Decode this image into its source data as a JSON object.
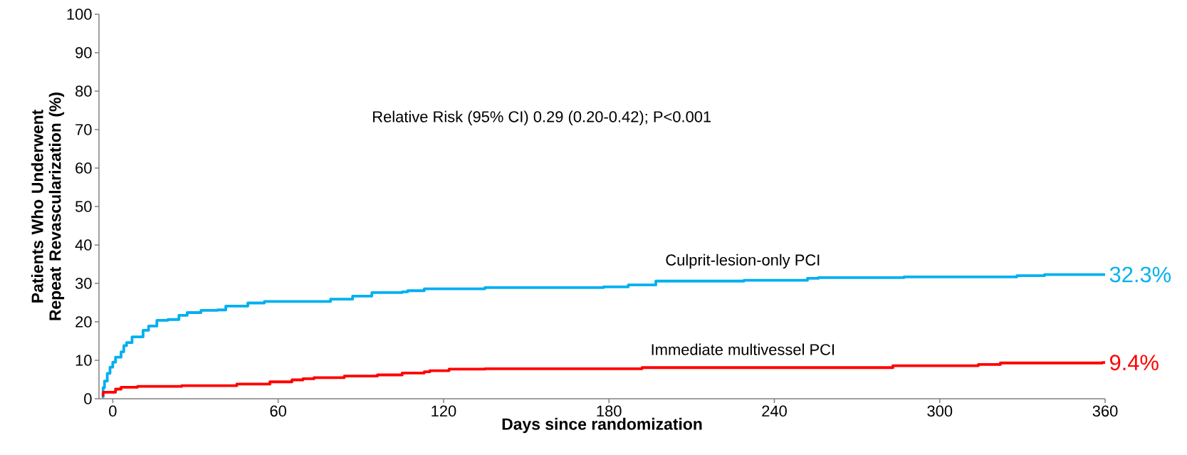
{
  "chart_data": {
    "type": "step",
    "xlabel": "Days since randomization",
    "ylabel": "Patients Who Underwent Repeat Revascularization (%)",
    "xlim": [
      -5,
      360
    ],
    "ylim": [
      0,
      100
    ],
    "xticks": [
      0,
      60,
      120,
      180,
      240,
      300,
      360
    ],
    "yticks": [
      0,
      10,
      20,
      30,
      40,
      50,
      60,
      70,
      80,
      90,
      100
    ],
    "annotations": [
      "Relative Risk (95% CI) 0.29 (0.20-0.42); P<0.001"
    ],
    "series": [
      {
        "name": "Culprit-lesion-only PCI",
        "color": "#00b0f0",
        "x": [
          -4,
          -3.5,
          -3,
          -2,
          -1,
          0,
          1,
          3,
          4,
          5,
          7,
          11,
          13,
          16,
          20,
          24,
          27,
          32,
          38,
          41,
          49,
          55,
          79,
          87,
          94,
          105,
          107,
          113,
          135,
          178,
          187,
          197,
          229,
          252,
          256,
          287,
          328,
          338,
          360
        ],
        "values": [
          0.5,
          2.9,
          4.6,
          6.6,
          8.2,
          9.5,
          10.8,
          12.2,
          13.8,
          14.6,
          16.1,
          17.8,
          18.9,
          20.4,
          20.6,
          21.7,
          22.4,
          23.0,
          23.1,
          24.1,
          24.9,
          25.3,
          25.9,
          26.7,
          27.6,
          27.8,
          28.1,
          28.6,
          28.9,
          29.1,
          29.6,
          30.6,
          30.8,
          31.3,
          31.5,
          31.7,
          32.0,
          32.3,
          32.3
        ],
        "value_labels": [
          null,
          null,
          null,
          null,
          null,
          null,
          null,
          null,
          null,
          null,
          null,
          null,
          null,
          null,
          null,
          null,
          null,
          null,
          null,
          null,
          null,
          null,
          null,
          null,
          null,
          null,
          null,
          null,
          null,
          null,
          null,
          null,
          null,
          null,
          null,
          null,
          null,
          null,
          "32.3%"
        ]
      },
      {
        "name": "Immediate multivessel PCI",
        "color": "#ff0000",
        "x": [
          -4,
          -3.5,
          1,
          3,
          9,
          25,
          45,
          57,
          65,
          69,
          73,
          84,
          96,
          105,
          113,
          115,
          122,
          135,
          192,
          283,
          314,
          322,
          359,
          360
        ],
        "values": [
          0.9,
          1.7,
          2.5,
          3.0,
          3.2,
          3.4,
          3.8,
          4.4,
          4.9,
          5.2,
          5.5,
          5.9,
          6.2,
          6.7,
          7.0,
          7.3,
          7.7,
          7.8,
          8.1,
          8.6,
          8.9,
          9.3,
          9.4,
          9.4
        ],
        "value_labels": [
          null,
          null,
          null,
          null,
          null,
          null,
          null,
          null,
          null,
          null,
          null,
          null,
          null,
          null,
          null,
          null,
          null,
          null,
          null,
          null,
          null,
          null,
          null,
          "9.4%"
        ]
      }
    ]
  }
}
